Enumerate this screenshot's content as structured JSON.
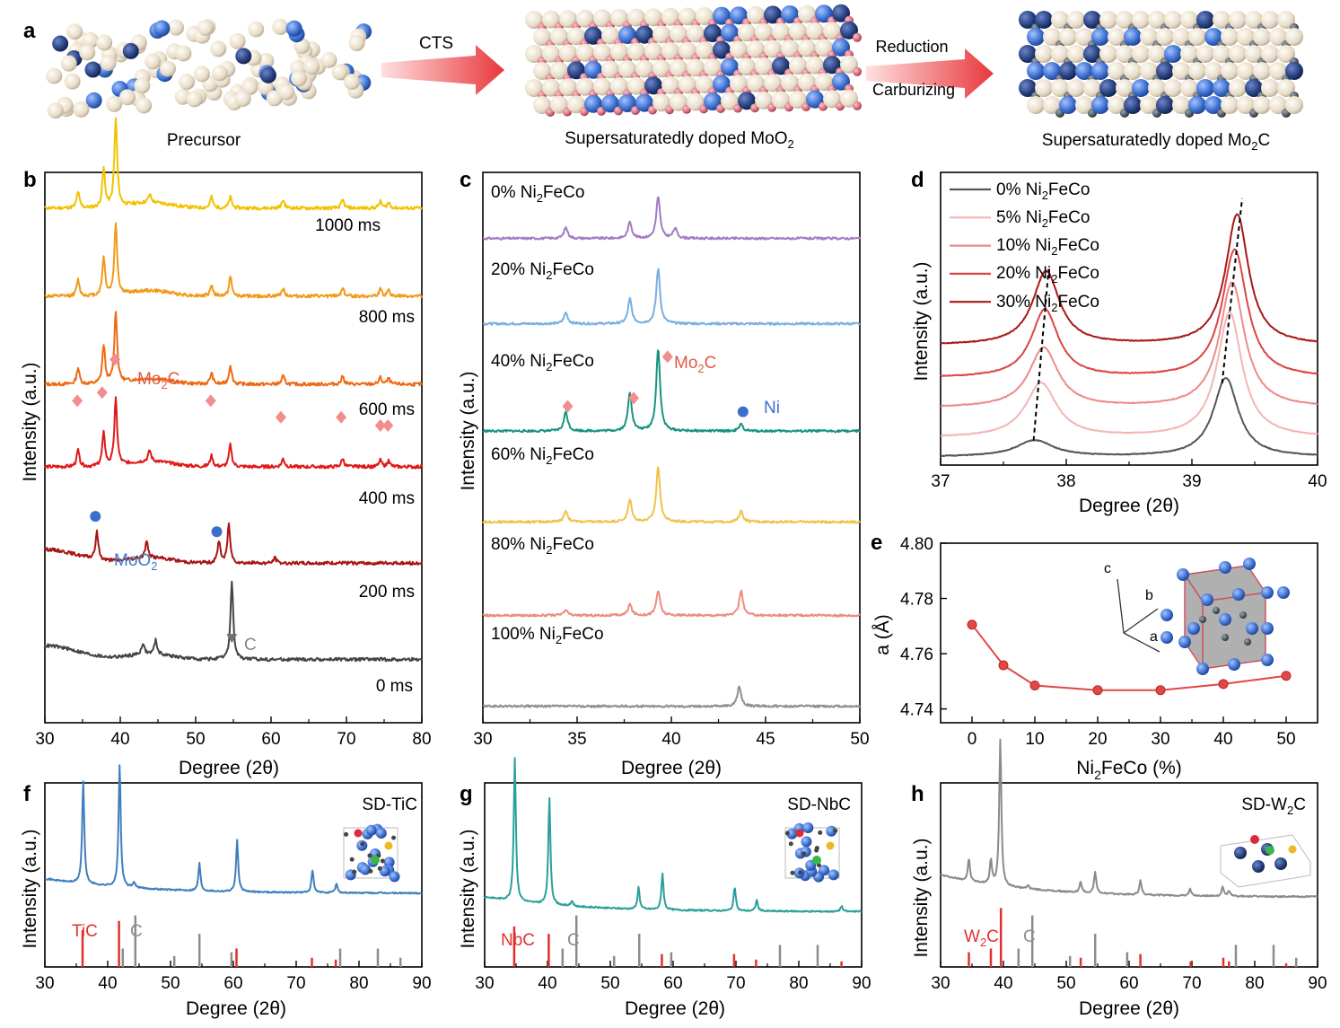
{
  "colors": {
    "beige": "#ece3d3",
    "blue": "#3a6fd0",
    "dark_blue": "#1f3f8a",
    "red_atom": "#d56a7a",
    "gray_atom": "#3d4650",
    "arrow_red": "#e8383c",
    "mo2c_marker": "#f08d8d",
    "mo2_marker": "#3a6fd0",
    "c_marker": "#707070",
    "ref_red": "#e03030",
    "ref_gray": "#8c8c8c",
    "e_line": "#e04848"
  },
  "panel_a": {
    "label": "a",
    "steps": [
      {
        "caption": "Precursor"
      },
      {
        "caption": "Supersaturatedly doped MoO",
        "sub": "2"
      },
      {
        "caption": "Supersaturatedly doped Mo",
        "sub": "2",
        "suffix": "C"
      }
    ],
    "arrow1_label": "CTS",
    "arrow2_label_top": "Reduction",
    "arrow2_label_bottom": "Carburizing"
  },
  "panel_b": {
    "label": "b",
    "chart_data": {
      "type": "line",
      "xlabel": "Degree (2θ)",
      "ylabel": "Intensity (a.u.)",
      "xlim": [
        30,
        80
      ],
      "xticks": [
        30,
        40,
        50,
        60,
        70,
        80
      ],
      "series": [
        {
          "name": "1000 ms",
          "color": "#f2c200",
          "baseline": 0.935,
          "peaks": [
            [
              34.4,
              0.03
            ],
            [
              37.8,
              0.07
            ],
            [
              39.4,
              0.16
            ],
            [
              43.9,
              0.015
            ],
            [
              52.1,
              0.02
            ],
            [
              54.6,
              0.02
            ],
            [
              61.6,
              0.015
            ],
            [
              69.5,
              0.015
            ],
            [
              74.5,
              0.012
            ],
            [
              75.6,
              0.01
            ]
          ]
        },
        {
          "name": "800 ms",
          "color": "#f29a18",
          "baseline": 0.775,
          "peaks": [
            [
              34.4,
              0.03
            ],
            [
              37.8,
              0.07
            ],
            [
              39.4,
              0.13
            ],
            [
              52.1,
              0.02
            ],
            [
              54.6,
              0.035
            ],
            [
              61.6,
              0.015
            ],
            [
              69.5,
              0.015
            ],
            [
              74.5,
              0.012
            ],
            [
              75.6,
              0.01
            ]
          ]
        },
        {
          "name": "600 ms",
          "color": "#ee6a12",
          "baseline": 0.615,
          "peaks": [
            [
              34.4,
              0.03
            ],
            [
              37.8,
              0.07
            ],
            [
              39.4,
              0.13
            ],
            [
              52.1,
              0.02
            ],
            [
              54.6,
              0.035
            ],
            [
              61.6,
              0.015
            ],
            [
              69.5,
              0.015
            ],
            [
              74.5,
              0.012
            ],
            [
              75.6,
              0.01
            ]
          ]
        },
        {
          "name": "400 ms",
          "color": "#e01818",
          "baseline": 0.465,
          "peaks": [
            [
              34.4,
              0.03
            ],
            [
              37.8,
              0.06
            ],
            [
              39.4,
              0.12
            ],
            [
              43.9,
              0.02
            ],
            [
              52.1,
              0.02
            ],
            [
              54.6,
              0.04
            ],
            [
              61.6,
              0.015
            ],
            [
              69.5,
              0.015
            ],
            [
              74.5,
              0.012
            ],
            [
              75.6,
              0.01
            ]
          ]
        },
        {
          "name": "200 ms",
          "color": "#a81414",
          "baseline": 0.29,
          "peaks": [
            [
              36.9,
              0.05
            ],
            [
              43.5,
              0.03
            ],
            [
              53.1,
              0.04
            ],
            [
              54.4,
              0.07
            ],
            [
              60.5,
              0.01
            ]
          ]
        },
        {
          "name": "0 ms",
          "color": "#444444",
          "baseline": 0.115,
          "peaks": [
            [
              43.0,
              0.02
            ],
            [
              44.7,
              0.025
            ],
            [
              54.8,
              0.14
            ]
          ]
        }
      ],
      "annotations": [
        {
          "text": "Mo",
          "sub": "2",
          "suffix": "C",
          "color": "#e05a4a"
        },
        {
          "text": "MoO",
          "sub": "2",
          "suffix": "",
          "color": "#3a7ac8"
        },
        {
          "text": "C",
          "sub": "",
          "suffix": "",
          "color": "#888888"
        }
      ],
      "markers": [
        {
          "type": "diamond",
          "x": [
            34.3,
            37.6,
            39.3,
            52.0,
            61.3,
            69.3,
            74.5,
            75.5
          ]
        },
        {
          "type": "circle",
          "x": [
            36.7,
            52.8
          ]
        },
        {
          "type": "triangle",
          "x": [
            54.8
          ]
        }
      ]
    }
  },
  "panel_c": {
    "label": "c",
    "chart_data": {
      "type": "line",
      "xlabel": "Degree (2θ)",
      "ylabel": "Intensity (a.u.)",
      "xlim": [
        30,
        50
      ],
      "xticks": [
        30,
        35,
        40,
        45,
        50
      ],
      "series": [
        {
          "name": "0% Ni",
          "sub": "2",
          "suffix": "FeCo",
          "color": "#a27bc4",
          "baseline": 0.88,
          "peaks": [
            [
              34.4,
              0.02
            ],
            [
              37.8,
              0.03
            ],
            [
              39.3,
              0.075
            ],
            [
              40.2,
              0.018
            ]
          ]
        },
        {
          "name": "20% Ni",
          "sub": "2",
          "suffix": "FeCo",
          "color": "#79aee0",
          "baseline": 0.725,
          "peaks": [
            [
              34.4,
              0.02
            ],
            [
              37.8,
              0.045
            ],
            [
              39.3,
              0.1
            ]
          ]
        },
        {
          "name": "40% Ni",
          "sub": "2",
          "suffix": "FeCo",
          "color": "#16937f",
          "baseline": 0.53,
          "peaks": [
            [
              34.4,
              0.035
            ],
            [
              37.8,
              0.07
            ],
            [
              39.3,
              0.15
            ],
            [
              43.7,
              0.012
            ]
          ]
        },
        {
          "name": "60% Ni",
          "sub": "2",
          "suffix": "FeCo",
          "color": "#f0c24a",
          "baseline": 0.365,
          "peaks": [
            [
              34.4,
              0.02
            ],
            [
              37.8,
              0.04
            ],
            [
              39.3,
              0.1
            ],
            [
              43.7,
              0.02
            ]
          ]
        },
        {
          "name": "80% Ni",
          "sub": "2",
          "suffix": "FeCo",
          "color": "#ec8b7e",
          "baseline": 0.195,
          "peaks": [
            [
              34.4,
              0.01
            ],
            [
              37.8,
              0.02
            ],
            [
              39.3,
              0.045
            ],
            [
              43.7,
              0.045
            ]
          ]
        },
        {
          "name": "100% Ni",
          "sub": "2",
          "suffix": "FeCo",
          "color": "#8f8f8f",
          "baseline": 0.03,
          "peaks": [
            [
              43.6,
              0.035
            ]
          ]
        }
      ],
      "annotations": [
        {
          "text": "Mo",
          "sub": "2",
          "suffix": "C",
          "color": "#e05a4a"
        },
        {
          "text": "Ni",
          "sub": "",
          "suffix": "",
          "color": "#3a6fd0"
        }
      ],
      "markers": [
        {
          "type": "diamond",
          "x": [
            34.5,
            38.0,
            39.8
          ]
        },
        {
          "type": "circle",
          "x": [
            43.8
          ]
        }
      ]
    }
  },
  "panel_d": {
    "label": "d",
    "chart_data": {
      "type": "line",
      "xlabel": "Degree (2θ)",
      "ylabel": "Intensity (a.u.)",
      "xlim": [
        37,
        40
      ],
      "xticks": [
        37,
        38,
        39,
        40
      ],
      "series": [
        {
          "name": "0% Ni",
          "sub": "2",
          "suffix": "FeCo",
          "color": "#555555",
          "baseline": 0.03,
          "peaks": [
            [
              37.75,
              0.06,
              0.18
            ],
            [
              39.27,
              0.29,
              0.12
            ]
          ]
        },
        {
          "name": "5% Ni",
          "sub": "2",
          "suffix": "FeCo",
          "color": "#f5b5b5",
          "baseline": 0.1,
          "peaks": [
            [
              37.8,
              0.2,
              0.15
            ],
            [
              39.3,
              0.46,
              0.12
            ]
          ]
        },
        {
          "name": "10% Ni",
          "sub": "2",
          "suffix": "FeCo",
          "color": "#ee8a8a",
          "baseline": 0.21,
          "peaks": [
            [
              37.82,
              0.22,
              0.14
            ],
            [
              39.32,
              0.46,
              0.12
            ]
          ]
        },
        {
          "name": "20% Ni",
          "sub": "2",
          "suffix": "FeCo",
          "color": "#dc4545",
          "baseline": 0.32,
          "peaks": [
            [
              37.83,
              0.25,
              0.13
            ],
            [
              39.34,
              0.47,
              0.12
            ]
          ]
        },
        {
          "name": "30% Ni",
          "sub": "2",
          "suffix": "FeCo",
          "color": "#a81818",
          "baseline": 0.44,
          "peaks": [
            [
              37.84,
              0.27,
              0.13
            ],
            [
              39.36,
              0.48,
              0.11
            ]
          ]
        }
      ]
    }
  },
  "panel_e": {
    "label": "e",
    "chart_data": {
      "type": "line",
      "xlabel": "Ni",
      "xlabel_sub": "2",
      "xlabel_suffix": "FeCo (%)",
      "ylabel": "a (Å)",
      "xlim": [
        -5,
        55
      ],
      "ylim": [
        4.735,
        4.8
      ],
      "xticks": [
        0,
        10,
        20,
        30,
        40,
        50
      ],
      "yticks": [
        4.74,
        4.76,
        4.78,
        4.8
      ],
      "x": [
        0,
        5,
        10,
        20,
        30,
        40,
        50
      ],
      "y": [
        4.7705,
        4.7558,
        4.7485,
        4.7468,
        4.7468,
        4.749,
        4.752
      ],
      "axis_labels": [
        "c",
        "b",
        "a"
      ]
    }
  },
  "panel_f": {
    "label": "f",
    "chart_data": {
      "type": "line",
      "title": "SD-TiC",
      "xlabel": "Degree (2θ)",
      "ylabel": "Intensity (a.u.)",
      "xlim": [
        30,
        90
      ],
      "xticks": [
        30,
        40,
        50,
        60,
        70,
        80,
        90
      ],
      "color": "#3e7fbd",
      "peaks": [
        [
          36.1,
          0.56
        ],
        [
          41.9,
          0.67
        ],
        [
          44.2,
          0.03
        ],
        [
          54.6,
          0.15
        ],
        [
          60.6,
          0.28
        ],
        [
          72.6,
          0.12
        ],
        [
          76.4,
          0.05
        ]
      ],
      "bg_start": 0.48,
      "bg_end": 0.4,
      "ref_red": {
        "label": "TiC",
        "x": [
          36.0,
          41.8,
          60.5,
          72.5,
          76.3
        ],
        "h": [
          0.2,
          0.25,
          0.1,
          0.05,
          0.04
        ]
      },
      "ref_gray": {
        "label": "C",
        "x": [
          42.4,
          44.4,
          50.6,
          54.6,
          59.7,
          77.0,
          83.0,
          86.6
        ],
        "h": [
          0.1,
          0.28,
          0.06,
          0.18,
          0.08,
          0.1,
          0.1,
          0.05
        ]
      }
    }
  },
  "panel_g": {
    "label": "g",
    "chart_data": {
      "type": "line",
      "title": "SD-NbC",
      "xlabel": "Degree (2θ)",
      "ylabel": "Intensity (a.u.)",
      "xlim": [
        30,
        90
      ],
      "xticks": [
        30,
        40,
        50,
        60,
        70,
        80,
        90
      ],
      "color": "#2aa09a",
      "peaks": [
        [
          34.8,
          0.78
        ],
        [
          40.3,
          0.58
        ],
        [
          43.9,
          0.03
        ],
        [
          54.5,
          0.12
        ],
        [
          58.3,
          0.2
        ],
        [
          69.8,
          0.13
        ],
        [
          73.3,
          0.06
        ],
        [
          86.8,
          0.03
        ]
      ],
      "bg_start": 0.38,
      "bg_end": 0.3,
      "ref_red": {
        "label": "NbC",
        "x": [
          34.7,
          40.2,
          58.2,
          69.7,
          73.2,
          86.8
        ],
        "h": [
          0.22,
          0.18,
          0.07,
          0.07,
          0.04,
          0.03
        ]
      },
      "ref_gray": {
        "label": "C",
        "x": [
          42.4,
          44.6,
          50.6,
          54.6,
          59.7,
          77.0,
          83.0
        ],
        "h": [
          0.1,
          0.28,
          0.06,
          0.18,
          0.08,
          0.12,
          0.12
        ]
      }
    }
  },
  "panel_h": {
    "label": "h",
    "title_text": "SD-W",
    "title_sub": "2",
    "title_suffix": "C",
    "chart_data": {
      "type": "line",
      "title": "SD-W2C",
      "xlabel": "Degree (2θ)",
      "ylabel": "Intensity (a.u.)",
      "xlim": [
        30,
        90
      ],
      "xticks": [
        30,
        40,
        50,
        60,
        70,
        80,
        90
      ],
      "color": "#8a8a8a",
      "peaks": [
        [
          34.5,
          0.12
        ],
        [
          38.0,
          0.13
        ],
        [
          39.5,
          0.8
        ],
        [
          43.9,
          0.02
        ],
        [
          52.3,
          0.06
        ],
        [
          54.6,
          0.12
        ],
        [
          61.8,
          0.08
        ],
        [
          69.7,
          0.04
        ],
        [
          74.9,
          0.05
        ],
        [
          75.9,
          0.03
        ]
      ],
      "bg_start": 0.5,
      "bg_end": 0.38,
      "ref_red": {
        "label": "W",
        "label_sub": "2",
        "label_suffix": "C",
        "x": [
          34.5,
          38.0,
          39.6,
          52.3,
          61.8,
          69.8,
          75.0,
          75.9,
          85.0
        ],
        "h": [
          0.08,
          0.1,
          0.32,
          0.05,
          0.07,
          0.03,
          0.05,
          0.03,
          0.02
        ]
      },
      "ref_gray": {
        "label": "C",
        "x": [
          42.4,
          44.6,
          50.6,
          54.6,
          59.7,
          77.0,
          83.0,
          86.6
        ],
        "h": [
          0.1,
          0.28,
          0.06,
          0.18,
          0.08,
          0.12,
          0.12,
          0.05
        ]
      }
    }
  }
}
